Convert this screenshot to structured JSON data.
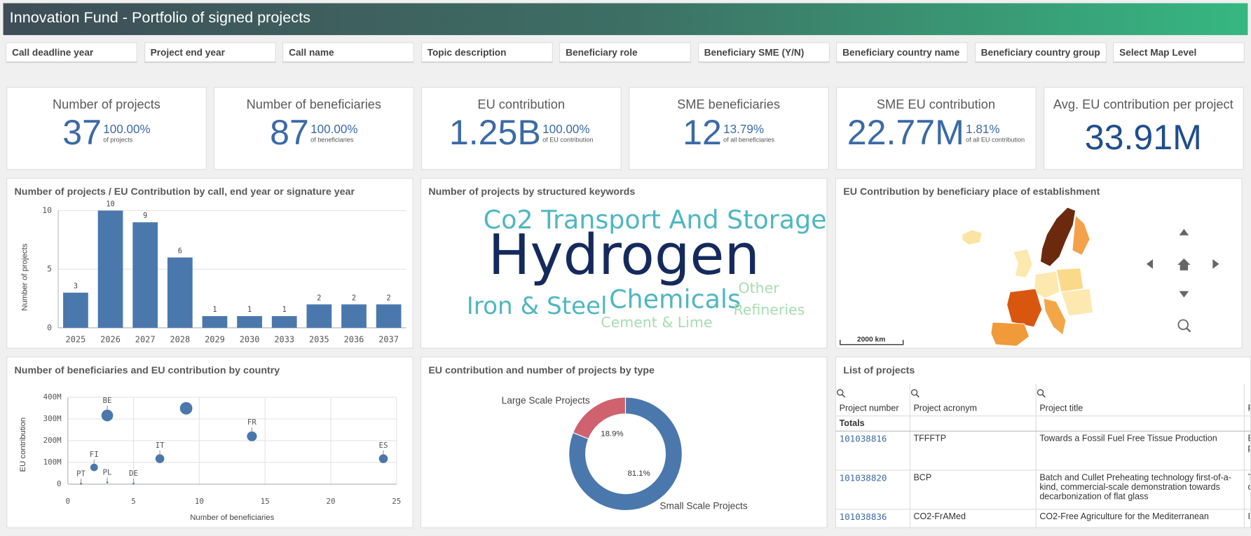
{
  "header": {
    "title": "Innovation Fund - Portfolio of signed projects"
  },
  "filters": [
    "Call deadline year",
    "Project end year",
    "Call name",
    "Topic description",
    "Beneficiary role",
    "Beneficiary SME (Y/N)",
    "Beneficiary country name",
    "Beneficiary country group",
    "Select Map Level"
  ],
  "kpis": [
    {
      "title": "Number of projects",
      "value": "37",
      "percent": "100.00%",
      "note": "of projects"
    },
    {
      "title": "Number of beneficiaries",
      "value": "87",
      "percent": "100.00%",
      "note": "of beneficiaries"
    },
    {
      "title": "EU contribution",
      "value": "1.25B",
      "percent": "100.00%",
      "note": "of EU contribution"
    },
    {
      "title": "SME beneficiaries",
      "value": "12",
      "percent": "13.79%",
      "note": "of all beneficiaries"
    },
    {
      "title": "SME EU contribution",
      "value": "22.77M",
      "percent": "1.81%",
      "note": "of all EU contribution"
    },
    {
      "title": "Avg. EU contribution per project",
      "value": "33.91M"
    }
  ],
  "charts": {
    "projects_by_year": {
      "type": "bar",
      "title": "Number of projects / EU Contribution by call, end year or signature year",
      "y_label": "Number of projects",
      "categories": [
        "2025",
        "2026",
        "2027",
        "2028",
        "2029",
        "2030",
        "2033",
        "2035",
        "2036",
        "2037"
      ],
      "values": [
        3,
        10,
        9,
        6,
        1,
        1,
        1,
        2,
        2,
        2
      ],
      "color": "#4a78ad",
      "ylim": [
        0,
        10
      ],
      "yticks": [
        0,
        5,
        10
      ],
      "grid": true
    },
    "keywords": {
      "type": "wordcloud",
      "title": "Number of projects by structured keywords",
      "words": [
        "Co2 Transport And Storage",
        "Hydrogen",
        "Iron & Steel",
        "Chemicals",
        "Other",
        "Refineries",
        "Cement & Lime"
      ]
    },
    "map": {
      "type": "map",
      "title": "EU Contribution by beneficiary place of establishment",
      "scale_label": "2000 km"
    },
    "by_country": {
      "type": "scatter",
      "title": "Number of beneficiaries and EU contribution by country",
      "x_label": "Number of beneficiaries",
      "y_label": "EU contribution",
      "labels": [
        "BE",
        null,
        "FR",
        "IT",
        "FI",
        "ES",
        "PT",
        "PL",
        "DE"
      ],
      "x": [
        3,
        9,
        14,
        7,
        2,
        24,
        1,
        3,
        5
      ],
      "values": [
        316000000,
        349000000,
        220000000,
        117000000,
        77000000,
        117000000,
        2000000,
        8000000,
        3000000
      ],
      "sizes": [
        6,
        7,
        4,
        3,
        2,
        3,
        0,
        0,
        0
      ],
      "color": "#4a78ad",
      "xlim": [
        0,
        25
      ],
      "xticks": [
        0,
        5,
        10,
        15,
        20,
        25
      ],
      "ylim": [
        0,
        400000000
      ],
      "yticks": [
        0,
        {
          "value": 100000000,
          "label": "100M"
        },
        {
          "value": 200000000,
          "label": "200M"
        },
        {
          "value": 300000000,
          "label": "300M"
        },
        {
          "value": 400000000,
          "label": "400M"
        }
      ],
      "grid": true
    },
    "by_type": {
      "type": "donut",
      "title": "EU contribution and number of projects by type",
      "categories": [
        "Large Scale Projects",
        "Small Scale Projects"
      ],
      "values": [
        18.9,
        81.1
      ],
      "value_labels": [
        "18.9%",
        "81.1%"
      ],
      "colors": [
        "#d0616f",
        "#4a78ad"
      ]
    }
  },
  "table": {
    "title": "List of projects",
    "columns": [
      "Project number",
      "Project acronym",
      "Project title",
      "Proj"
    ],
    "totals_label": "Totals",
    "rows": [
      [
        "101038816",
        "TFFFTP",
        "Towards a Fossil Fuel Free Tissue Production",
        "Essi inno pape"
      ],
      [
        "101038820",
        "BCP",
        "Batch and Cullet Preheating technology first-of-a-kind, commercial-scale demonstration towards decarbonization of flat glass",
        "The proc one"
      ],
      [
        "101038836",
        "CO2-FrAMed",
        "CO2-Free Agriculture for the Mediterranean",
        "Irrig"
      ]
    ]
  }
}
